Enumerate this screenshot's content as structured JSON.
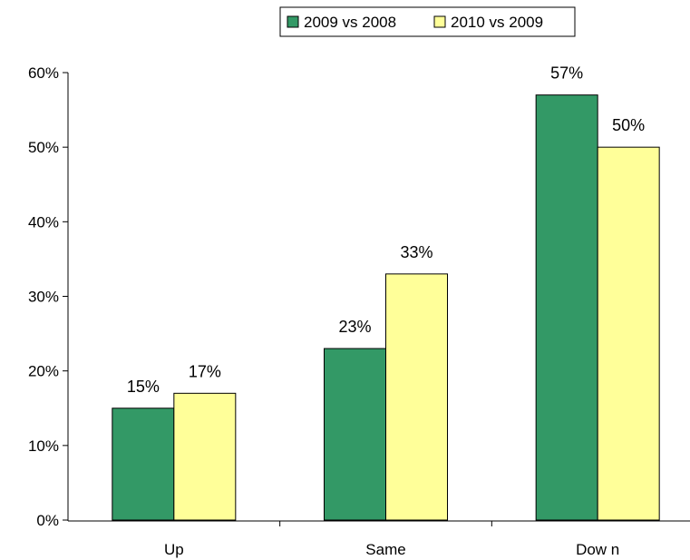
{
  "chart_data": {
    "type": "bar",
    "categories": [
      "Up",
      "Same",
      "Dow n"
    ],
    "series": [
      {
        "name": "2009 vs 2008",
        "values": [
          15,
          23,
          57
        ],
        "color": "#339966"
      },
      {
        "name": "2010 vs 2009",
        "values": [
          17,
          33,
          50
        ],
        "color": "#FFFF99"
      }
    ],
    "value_labels": [
      [
        "15%",
        "23%",
        "57%"
      ],
      [
        "17%",
        "33%",
        "50%"
      ]
    ],
    "y_ticks": [
      0,
      10,
      20,
      30,
      40,
      50,
      60
    ],
    "y_tick_labels": [
      "0%",
      "10%",
      "20%",
      "30%",
      "40%",
      "50%",
      "60%"
    ],
    "ylim": [
      0,
      60
    ],
    "title": "",
    "xlabel": "",
    "ylabel": "",
    "grid": false,
    "legend_position": "top"
  }
}
